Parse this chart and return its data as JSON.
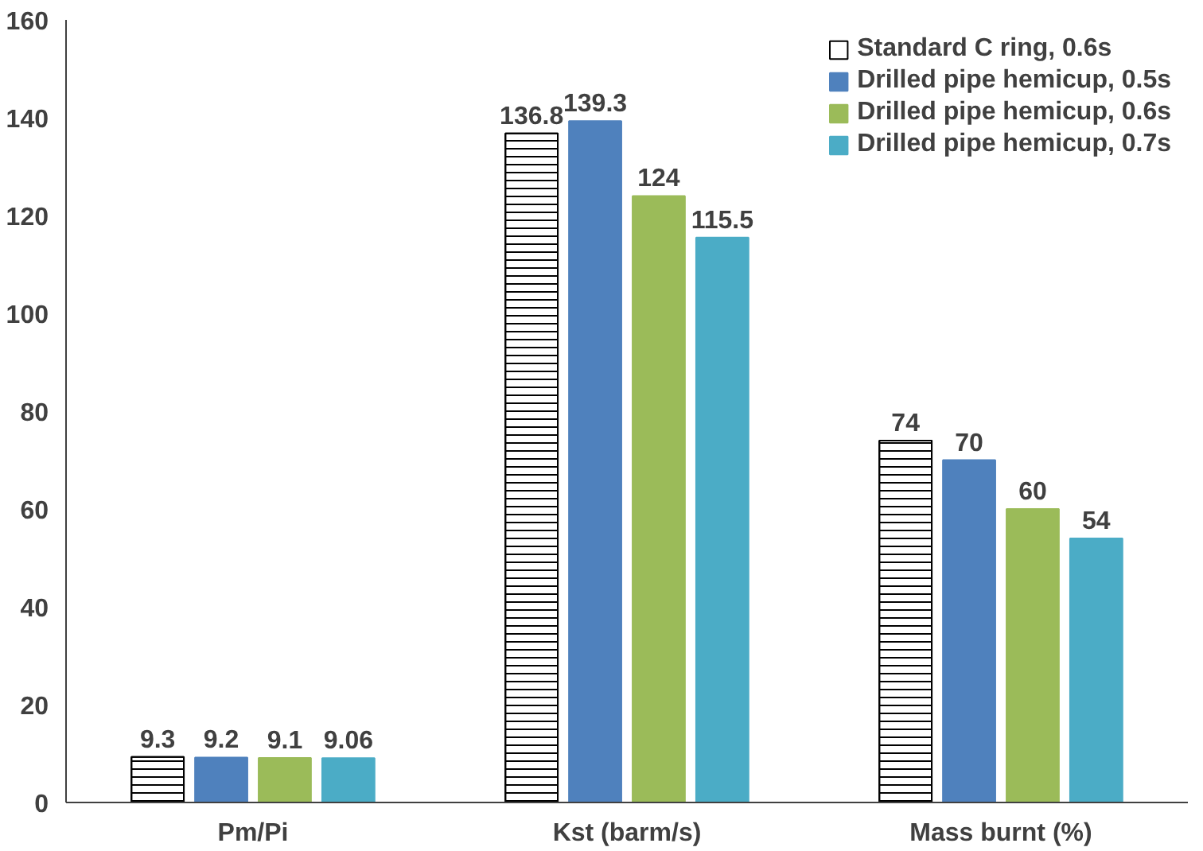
{
  "chart_data": {
    "type": "bar",
    "categories": [
      "Pm/Pi",
      "Kst (barm/s)",
      "Mass burnt (%)"
    ],
    "series": [
      {
        "name": "Standard C ring, 0.6s",
        "color": "#ffffff",
        "values": [
          9.3,
          136.8,
          74
        ]
      },
      {
        "name": "Drilled pipe hemicup, 0.5s",
        "color": "#4f81bd",
        "values": [
          9.2,
          139.3,
          70
        ]
      },
      {
        "name": "Drilled pipe hemicup, 0.6s",
        "color": "#9bbb59",
        "values": [
          9.1,
          124,
          60
        ]
      },
      {
        "name": "Drilled pipe hemicup, 0.7s",
        "color": "#4bacc6",
        "values": [
          9.06,
          115.5,
          54
        ]
      }
    ],
    "ylim": [
      0,
      160
    ],
    "yticks": [
      0,
      20,
      40,
      60,
      80,
      100,
      120,
      140,
      160
    ],
    "data_labels": true,
    "grid": false,
    "legend": "top right"
  }
}
